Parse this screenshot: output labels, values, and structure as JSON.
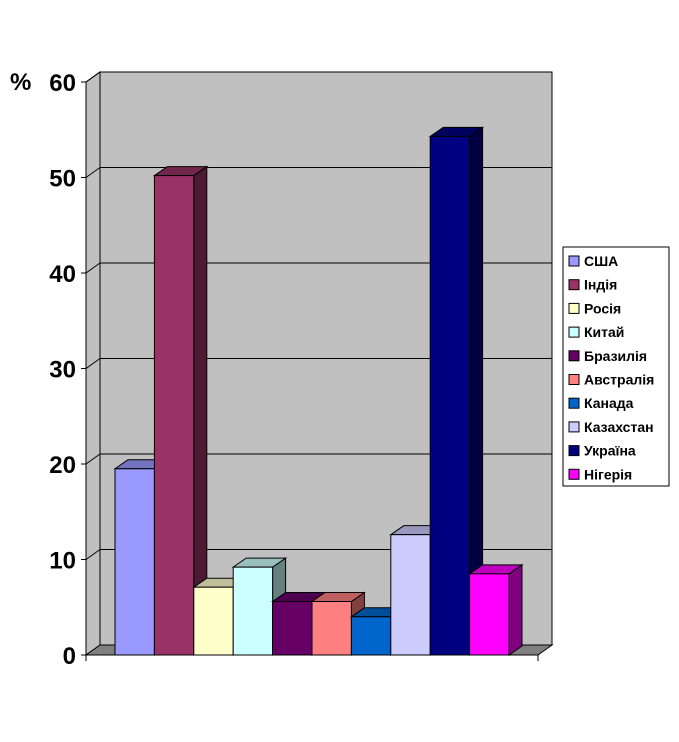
{
  "chart_data": {
    "type": "bar",
    "style": "3d-clustered-column",
    "ylabel": "%",
    "ylim": [
      0,
      60
    ],
    "yticks": [
      "0",
      "10",
      "20",
      "30",
      "40",
      "50",
      "60"
    ],
    "grid": true,
    "legend_position": "right",
    "series": [
      {
        "name": "США",
        "value": 19.5,
        "color": "#9999ff"
      },
      {
        "name": "Індія",
        "value": 50.2,
        "color": "#993366"
      },
      {
        "name": "Росія",
        "value": 7.1,
        "color": "#ffffcc"
      },
      {
        "name": "Китай",
        "value": 9.2,
        "color": "#ccffff"
      },
      {
        "name": "Бразилія",
        "value": 5.6,
        "color": "#660066"
      },
      {
        "name": "Австралія",
        "value": 5.6,
        "color": "#ff8080"
      },
      {
        "name": "Канада",
        "value": 4.0,
        "color": "#0066cc"
      },
      {
        "name": "Казахстан",
        "value": 12.6,
        "color": "#ccccff"
      },
      {
        "name": "Україна",
        "value": 54.3,
        "color": "#000080"
      },
      {
        "name": "Нігерія",
        "value": 8.5,
        "color": "#ff00ff"
      }
    ],
    "wall_color": "#c0c0c0"
  }
}
